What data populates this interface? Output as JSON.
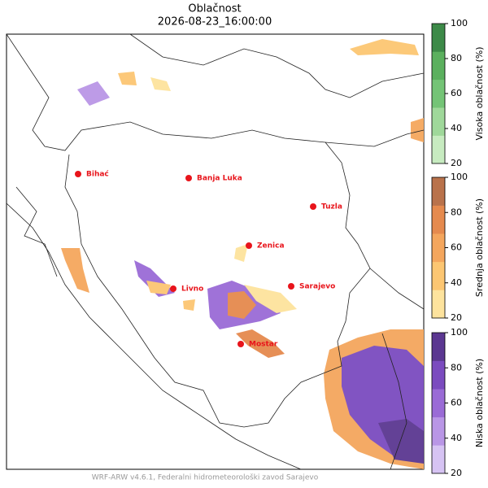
{
  "title": "Oblačnost",
  "subtitle": "2026-08-23_16:00:00",
  "footer": "WRF-ARW v4.6.1, Federalni hidrometeorološki zavod Sarajevo",
  "cities": [
    "Bihać",
    "Banja Luka",
    "Tuzla",
    "Zenica",
    "Livno",
    "Sarajevo",
    "Mostar"
  ],
  "colorbars": [
    {
      "label": "Visoka oblačnost (%)",
      "lim": [
        20,
        100
      ],
      "ticks": [
        20,
        40,
        60,
        80,
        100
      ],
      "colors": [
        "#c7ebc0",
        "#9fd89a",
        "#74c476",
        "#5bb05e",
        "#3d8a48"
      ]
    },
    {
      "label": "Srednja oblačnost (%)",
      "lim": [
        20,
        100
      ],
      "ticks": [
        20,
        40,
        60,
        80,
        100
      ],
      "colors": [
        "#fde39d",
        "#fcc672",
        "#f4a65d",
        "#e58a4e",
        "#b9724b"
      ]
    },
    {
      "label": "Niska oblačnost (%)",
      "lim": [
        20,
        100
      ],
      "ticks": [
        20,
        40,
        60,
        80,
        100
      ],
      "colors": [
        "#d6c3f3",
        "#b996e6",
        "#9a6bd6",
        "#7b4bbf",
        "#5b3791"
      ]
    }
  ]
}
